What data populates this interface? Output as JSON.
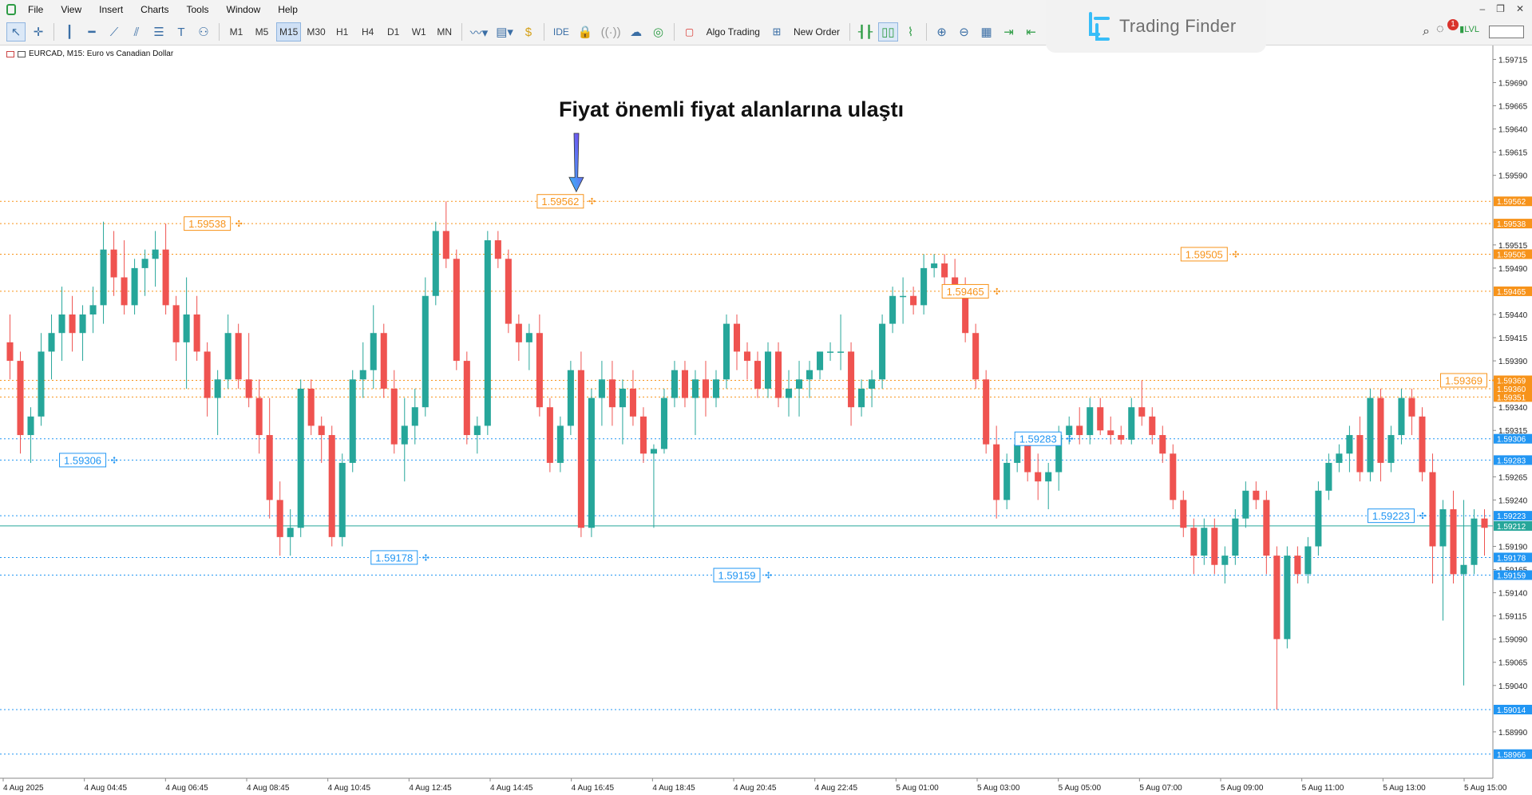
{
  "menu": {
    "items": [
      "File",
      "View",
      "Insert",
      "Charts",
      "Tools",
      "Window",
      "Help"
    ]
  },
  "toolbar": {
    "timeframes": [
      "M1",
      "M5",
      "M15",
      "M30",
      "H1",
      "H4",
      "D1",
      "W1",
      "MN"
    ],
    "active_timeframe": "M15",
    "ide_label": "IDE",
    "algo_trading_label": "Algo Trading",
    "new_order_label": "New Order",
    "notification_count": "1",
    "signal_label": "LVL"
  },
  "brand": {
    "name": "Trading Finder"
  },
  "chart": {
    "symbol_caption": "EURCAD, M15:  Euro vs Canadian Dollar",
    "annotation": "Fiyat önemli fiyat alanlarına ulaştı",
    "colors": {
      "bull": "#26a69a",
      "bear": "#ef5350",
      "resistance": "#f7931a",
      "support": "#2196f3",
      "current": "#26a69a",
      "arrow_start": "#7c3aed",
      "arrow_end": "#38bdf8"
    },
    "y_axis_ticks": [
      "1.59715",
      "1.59690",
      "1.59665",
      "1.59640",
      "1.59615",
      "1.59590",
      "1.59515",
      "1.59490",
      "1.59440",
      "1.59415",
      "1.59390",
      "1.59340",
      "1.59315",
      "1.59265",
      "1.59240",
      "1.59190",
      "1.59165",
      "1.59140",
      "1.59115",
      "1.59090",
      "1.59065",
      "1.59040",
      "1.58990"
    ],
    "x_axis_ticks": [
      "4 Aug 2025",
      "4 Aug 04:45",
      "4 Aug 06:45",
      "4 Aug 08:45",
      "4 Aug 10:45",
      "4 Aug 12:45",
      "4 Aug 14:45",
      "4 Aug 16:45",
      "4 Aug 18:45",
      "4 Aug 20:45",
      "4 Aug 22:45",
      "5 Aug 01:00",
      "5 Aug 03:00",
      "5 Aug 05:00",
      "5 Aug 07:00",
      "5 Aug 09:00",
      "5 Aug 11:00",
      "5 Aug 13:00",
      "5 Aug 15:00"
    ],
    "resistance_levels": [
      "1.59562",
      "1.59538",
      "1.59505",
      "1.59465",
      "1.59369",
      "1.59360"
    ],
    "resistance_axis_badges": [
      "1.59562",
      "1.59538",
      "1.59505",
      "1.59465",
      "1.59369",
      "1.59360",
      "1.59351"
    ],
    "support_levels": [
      "1.59306",
      "1.59283",
      "1.59223",
      "1.59178",
      "1.59159",
      "1.59014"
    ],
    "support_axis_badges": [
      "1.59306",
      "1.59283",
      "1.59223",
      "1.59178",
      "1.59159",
      "1.59014",
      "1.58966"
    ],
    "current_price": "1.59212"
  },
  "chart_data": {
    "type": "candlestick",
    "symbol": "EURCAD",
    "timeframe": "M15",
    "ylim": [
      1.5894,
      1.5973
    ],
    "resistance_level_values": [
      1.59562,
      1.59538,
      1.59505,
      1.59465,
      1.59369,
      1.5936,
      1.59351
    ],
    "support_level_values": [
      1.59306,
      1.59283,
      1.59223,
      1.59178,
      1.59159,
      1.59014,
      1.58966
    ],
    "resistance_label_pos": [
      [
        53,
        1.59562
      ],
      [
        19,
        1.59538
      ],
      [
        115,
        1.59505
      ],
      [
        92,
        1.59465
      ],
      [
        140,
        1.59369
      ],
      [
        172,
        1.5936
      ]
    ],
    "support_label_pos": [
      [
        7,
        1.59283
      ],
      [
        99,
        1.59306
      ],
      [
        133,
        1.59223
      ],
      [
        37,
        1.59178
      ],
      [
        70,
        1.59159
      ],
      [
        157,
        1.59014
      ]
    ],
    "candles": [
      [
        1.5941,
        1.5944,
        1.5937,
        1.5939
      ],
      [
        1.5939,
        1.594,
        1.5929,
        1.5931
      ],
      [
        1.5931,
        1.5934,
        1.5928,
        1.5933
      ],
      [
        1.5933,
        1.5942,
        1.5932,
        1.594
      ],
      [
        1.594,
        1.5944,
        1.5937,
        1.5942
      ],
      [
        1.5942,
        1.5947,
        1.5939,
        1.5944
      ],
      [
        1.5944,
        1.5946,
        1.594,
        1.5942
      ],
      [
        1.5942,
        1.5945,
        1.5939,
        1.5944
      ],
      [
        1.5944,
        1.5947,
        1.5942,
        1.5945
      ],
      [
        1.5945,
        1.5954,
        1.5943,
        1.5951
      ],
      [
        1.5951,
        1.5953,
        1.5946,
        1.5948
      ],
      [
        1.5948,
        1.5952,
        1.5944,
        1.5945
      ],
      [
        1.5945,
        1.595,
        1.5944,
        1.5949
      ],
      [
        1.5949,
        1.5951,
        1.5946,
        1.595
      ],
      [
        1.595,
        1.5953,
        1.5947,
        1.5951
      ],
      [
        1.5951,
        1.59538,
        1.5944,
        1.5945
      ],
      [
        1.5945,
        1.5946,
        1.5939,
        1.5941
      ],
      [
        1.5941,
        1.5948,
        1.5936,
        1.5944
      ],
      [
        1.5944,
        1.5946,
        1.5939,
        1.594
      ],
      [
        1.594,
        1.5941,
        1.5933,
        1.5935
      ],
      [
        1.5935,
        1.5938,
        1.5931,
        1.5937
      ],
      [
        1.5937,
        1.5944,
        1.5936,
        1.5942
      ],
      [
        1.5942,
        1.5943,
        1.5936,
        1.5937
      ],
      [
        1.5937,
        1.5942,
        1.5934,
        1.5935
      ],
      [
        1.5935,
        1.5937,
        1.5929,
        1.5931
      ],
      [
        1.5931,
        1.5935,
        1.5922,
        1.5924
      ],
      [
        1.5924,
        1.5926,
        1.5918,
        1.592
      ],
      [
        1.592,
        1.5923,
        1.5918,
        1.5921
      ],
      [
        1.5921,
        1.5937,
        1.592,
        1.5936
      ],
      [
        1.5936,
        1.5937,
        1.5931,
        1.5932
      ],
      [
        1.5932,
        1.5933,
        1.5928,
        1.5931
      ],
      [
        1.5931,
        1.5932,
        1.5919,
        1.592
      ],
      [
        1.592,
        1.5929,
        1.5919,
        1.5928
      ],
      [
        1.5928,
        1.5938,
        1.5927,
        1.5937
      ],
      [
        1.5937,
        1.5941,
        1.5935,
        1.5938
      ],
      [
        1.5938,
        1.5945,
        1.5936,
        1.5942
      ],
      [
        1.5942,
        1.5943,
        1.5935,
        1.5936
      ],
      [
        1.5936,
        1.5938,
        1.5929,
        1.593
      ],
      [
        1.593,
        1.5935,
        1.5926,
        1.5932
      ],
      [
        1.5932,
        1.5936,
        1.593,
        1.5934
      ],
      [
        1.5934,
        1.5948,
        1.5933,
        1.5946
      ],
      [
        1.5946,
        1.5954,
        1.5945,
        1.5953
      ],
      [
        1.5953,
        1.59562,
        1.5949,
        1.595
      ],
      [
        1.595,
        1.5951,
        1.5938,
        1.5939
      ],
      [
        1.5939,
        1.594,
        1.593,
        1.5931
      ],
      [
        1.5931,
        1.5933,
        1.5929,
        1.5932
      ],
      [
        1.5932,
        1.5953,
        1.5931,
        1.5952
      ],
      [
        1.5952,
        1.5953,
        1.5949,
        1.595
      ],
      [
        1.595,
        1.5951,
        1.5942,
        1.5943
      ],
      [
        1.5943,
        1.5944,
        1.5939,
        1.5941
      ],
      [
        1.5941,
        1.5943,
        1.5938,
        1.5942
      ],
      [
        1.5942,
        1.5944,
        1.5933,
        1.5934
      ],
      [
        1.5934,
        1.5935,
        1.5927,
        1.5928
      ],
      [
        1.5928,
        1.5933,
        1.5927,
        1.5932
      ],
      [
        1.5932,
        1.5939,
        1.5931,
        1.5938
      ],
      [
        1.5938,
        1.594,
        1.592,
        1.5921
      ],
      [
        1.5921,
        1.5936,
        1.592,
        1.5935
      ],
      [
        1.5935,
        1.5939,
        1.5932,
        1.5937
      ],
      [
        1.5937,
        1.5939,
        1.5932,
        1.5934
      ],
      [
        1.5934,
        1.5937,
        1.593,
        1.5936
      ],
      [
        1.5936,
        1.5938,
        1.5932,
        1.5933
      ],
      [
        1.5933,
        1.5934,
        1.5928,
        1.5929
      ],
      [
        1.5929,
        1.593,
        1.5921,
        1.59295
      ],
      [
        1.59295,
        1.5936,
        1.5929,
        1.5935
      ],
      [
        1.5935,
        1.5939,
        1.5934,
        1.5938
      ],
      [
        1.5938,
        1.5939,
        1.5934,
        1.5935
      ],
      [
        1.5935,
        1.5938,
        1.5931,
        1.5937
      ],
      [
        1.5937,
        1.5939,
        1.5933,
        1.5935
      ],
      [
        1.5935,
        1.5938,
        1.5934,
        1.5937
      ],
      [
        1.5937,
        1.5944,
        1.5936,
        1.5943
      ],
      [
        1.5943,
        1.5944,
        1.5938,
        1.594
      ],
      [
        1.594,
        1.5941,
        1.5937,
        1.5939
      ],
      [
        1.5939,
        1.594,
        1.5935,
        1.5936
      ],
      [
        1.5936,
        1.5941,
        1.5935,
        1.594
      ],
      [
        1.594,
        1.5941,
        1.5934,
        1.5935
      ],
      [
        1.5935,
        1.5938,
        1.5933,
        1.5936
      ],
      [
        1.5936,
        1.5939,
        1.5933,
        1.5937
      ],
      [
        1.5937,
        1.5939,
        1.5935,
        1.5938
      ],
      [
        1.5938,
        1.594,
        1.5937,
        1.594
      ],
      [
        1.594,
        1.5941,
        1.5939,
        1.594
      ],
      [
        1.594,
        1.5944,
        1.5938,
        1.594
      ],
      [
        1.594,
        1.5941,
        1.5932,
        1.5934
      ],
      [
        1.5934,
        1.5937,
        1.5933,
        1.5936
      ],
      [
        1.5936,
        1.5938,
        1.5934,
        1.5937
      ],
      [
        1.5937,
        1.5944,
        1.5936,
        1.5943
      ],
      [
        1.5943,
        1.5947,
        1.5942,
        1.5946
      ],
      [
        1.5946,
        1.5948,
        1.5943,
        1.5946
      ],
      [
        1.5946,
        1.5947,
        1.5944,
        1.5945
      ],
      [
        1.5945,
        1.59505,
        1.5944,
        1.5949
      ],
      [
        1.5949,
        1.59505,
        1.5948,
        1.59495
      ],
      [
        1.59495,
        1.59505,
        1.5947,
        1.5948
      ],
      [
        1.5948,
        1.595,
        1.5946,
        1.5947
      ],
      [
        1.5947,
        1.5948,
        1.5941,
        1.5942
      ],
      [
        1.5942,
        1.5943,
        1.5936,
        1.5937
      ],
      [
        1.5937,
        1.5938,
        1.5929,
        1.593
      ],
      [
        1.593,
        1.5932,
        1.5922,
        1.5924
      ],
      [
        1.5924,
        1.5929,
        1.5923,
        1.5928
      ],
      [
        1.5928,
        1.5931,
        1.5927,
        1.593
      ],
      [
        1.593,
        1.5931,
        1.5926,
        1.5927
      ],
      [
        1.5927,
        1.5929,
        1.5924,
        1.5926
      ],
      [
        1.5926,
        1.5928,
        1.5923,
        1.5927
      ],
      [
        1.5927,
        1.5932,
        1.5925,
        1.5931
      ],
      [
        1.5931,
        1.5933,
        1.593,
        1.5932
      ],
      [
        1.5932,
        1.5934,
        1.593,
        1.5931
      ],
      [
        1.5931,
        1.5935,
        1.593,
        1.5934
      ],
      [
        1.5934,
        1.5935,
        1.5931,
        1.59315
      ],
      [
        1.59315,
        1.5933,
        1.593,
        1.5931
      ],
      [
        1.5931,
        1.5932,
        1.593,
        1.59305
      ],
      [
        1.59305,
        1.5935,
        1.593,
        1.5934
      ],
      [
        1.5934,
        1.59369,
        1.5932,
        1.5933
      ],
      [
        1.5933,
        1.5934,
        1.593,
        1.5931
      ],
      [
        1.5931,
        1.5932,
        1.5928,
        1.5929
      ],
      [
        1.5929,
        1.593,
        1.5923,
        1.5924
      ],
      [
        1.5924,
        1.5925,
        1.592,
        1.5921
      ],
      [
        1.5921,
        1.5922,
        1.5916,
        1.5918
      ],
      [
        1.5918,
        1.5922,
        1.5917,
        1.5921
      ],
      [
        1.5921,
        1.5922,
        1.5916,
        1.5917
      ],
      [
        1.5917,
        1.5919,
        1.5915,
        1.5918
      ],
      [
        1.5918,
        1.5923,
        1.5917,
        1.5922
      ],
      [
        1.5922,
        1.5926,
        1.5921,
        1.5925
      ],
      [
        1.5925,
        1.5926,
        1.5923,
        1.5924
      ],
      [
        1.5924,
        1.5925,
        1.5916,
        1.5918
      ],
      [
        1.5918,
        1.5919,
        1.59014,
        1.5909
      ],
      [
        1.5909,
        1.5919,
        1.5908,
        1.5918
      ],
      [
        1.5918,
        1.5919,
        1.5915,
        1.5916
      ],
      [
        1.5916,
        1.592,
        1.5915,
        1.5919
      ],
      [
        1.5919,
        1.5926,
        1.5918,
        1.5925
      ],
      [
        1.5925,
        1.5929,
        1.5924,
        1.5928
      ],
      [
        1.5928,
        1.593,
        1.5927,
        1.5929
      ],
      [
        1.5929,
        1.5932,
        1.5927,
        1.5931
      ],
      [
        1.5931,
        1.5933,
        1.5926,
        1.5927
      ],
      [
        1.5927,
        1.5936,
        1.5926,
        1.5935
      ],
      [
        1.5935,
        1.5936,
        1.5926,
        1.5928
      ],
      [
        1.5928,
        1.5932,
        1.5927,
        1.5931
      ],
      [
        1.5931,
        1.5936,
        1.593,
        1.5935
      ],
      [
        1.5935,
        1.5936,
        1.5931,
        1.5933
      ],
      [
        1.5933,
        1.5934,
        1.5926,
        1.5927
      ],
      [
        1.5927,
        1.5929,
        1.5915,
        1.5919
      ],
      [
        1.5919,
        1.5924,
        1.5911,
        1.5923
      ],
      [
        1.5923,
        1.5925,
        1.5915,
        1.5916
      ],
      [
        1.5916,
        1.5924,
        1.5904,
        1.5917
      ],
      [
        1.5917,
        1.5923,
        1.5916,
        1.5922
      ],
      [
        1.5922,
        1.5923,
        1.5918,
        1.5921
      ]
    ]
  }
}
